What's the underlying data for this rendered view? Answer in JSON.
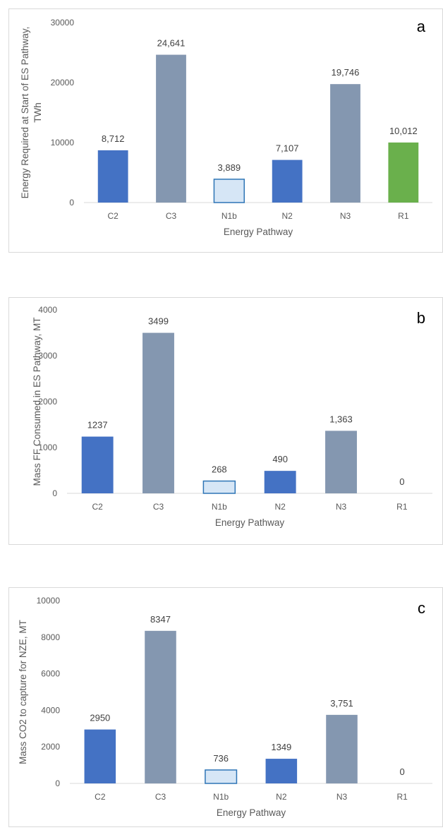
{
  "colors": {
    "blue": "#4472c4",
    "gray": "#8497b0",
    "light": "#d6e6f6",
    "light_border": "#2e75b6",
    "green": "#6ab04c",
    "gridline": "#d9d9d9",
    "text": "#595959"
  },
  "chart_data": [
    {
      "type": "bar",
      "panel_label": "a",
      "categories": [
        "C2",
        "C3",
        "N1b",
        "N2",
        "N3",
        "R1"
      ],
      "values": [
        8712,
        24641,
        3889,
        7107,
        19746,
        10012
      ],
      "value_labels": [
        "8,712",
        "24,641",
        "3,889",
        "7,107",
        "19,746",
        "10,012"
      ],
      "bar_colors": [
        "blue",
        "gray",
        "light",
        "blue",
        "gray",
        "green"
      ],
      "xlabel": "Energy Pathway",
      "ylabel": [
        "Energy Required at Start of ES Pathway,",
        "TWh"
      ],
      "ylim": [
        0,
        30000
      ],
      "yticks": [
        0,
        10000,
        20000,
        30000
      ],
      "grid": false,
      "legend": "none"
    },
    {
      "type": "bar",
      "panel_label": "b",
      "categories": [
        "C2",
        "C3",
        "N1b",
        "N2",
        "N3",
        "R1"
      ],
      "values": [
        1237,
        3499,
        268,
        490,
        1363,
        0
      ],
      "value_labels": [
        "1237",
        "3499",
        "268",
        "490",
        "1,363",
        "0"
      ],
      "bar_colors": [
        "blue",
        "gray",
        "light",
        "blue",
        "gray",
        "gray"
      ],
      "xlabel": "Energy Pathway",
      "ylabel": [
        "Mass FF  Consumed in ES Pathway, MT"
      ],
      "ylim": [
        0,
        4000
      ],
      "yticks": [
        0,
        1000,
        2000,
        3000,
        4000
      ],
      "grid": false,
      "legend": "none"
    },
    {
      "type": "bar",
      "panel_label": "c",
      "categories": [
        "C2",
        "C3",
        "N1b",
        "N2",
        "N3",
        "R1"
      ],
      "values": [
        2950,
        8347,
        736,
        1349,
        3751,
        0
      ],
      "value_labels": [
        "2950",
        "8347",
        "736",
        "1349",
        "3,751",
        "0"
      ],
      "bar_colors": [
        "blue",
        "gray",
        "light",
        "blue",
        "gray",
        "gray"
      ],
      "xlabel": "Energy Pathway",
      "ylabel": [
        "Mass CO2 to capture for NZE, MT"
      ],
      "ylim": [
        0,
        10000
      ],
      "yticks": [
        0,
        2000,
        4000,
        6000,
        8000,
        10000
      ],
      "grid": false,
      "legend": "none"
    }
  ]
}
